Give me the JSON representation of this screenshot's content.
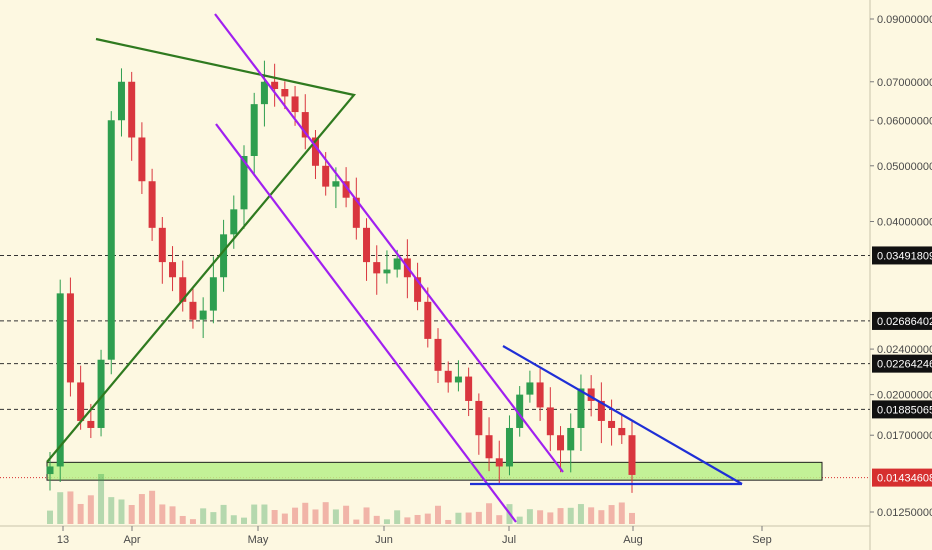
{
  "colors": {
    "background": "#fdf8e1",
    "up_candle": "#2e9e4f",
    "down_candle": "#d9363e",
    "purple_channel": "#a020f0",
    "green_triangle": "#2f7a1f",
    "blue_triangle": "#1f2fd6",
    "support_zone_fill": "#b9f08a",
    "current_price": "#d62f2f",
    "level_line": "#333333"
  },
  "chart_data": {
    "type": "candlestick",
    "title": "",
    "xlabel": "",
    "ylabel": "",
    "y_scale": "log",
    "ylim": [
      0.0118,
      0.095
    ],
    "grid": false,
    "x_ticks": [
      "13",
      "Apr",
      "May",
      "Jun",
      "Jul",
      "Aug",
      "Sep"
    ],
    "y_ticks": [
      "0.09000000",
      "0.07000000",
      "0.06000000",
      "0.05000000",
      "0.04000000",
      "0.03491809",
      "0.02686402",
      "0.02400000",
      "0.02264246",
      "0.02000000",
      "0.01885065",
      "0.01700000",
      "0.01434608",
      "0.01250000"
    ],
    "levels": [
      {
        "value": 0.03491809,
        "label": "0.03491809"
      },
      {
        "value": 0.02686402,
        "label": "0.02686402"
      },
      {
        "value": 0.02264246,
        "label": "0.02264246"
      },
      {
        "value": 0.01885065,
        "label": "0.01885065"
      }
    ],
    "current_price": {
      "value": 0.01434608,
      "label": "0.01434608"
    },
    "support_zone": [
      0.0142,
      0.01525
    ],
    "candles_close_path": [
      0.015,
      0.03,
      0.021,
      0.018,
      0.0175,
      0.023,
      0.06,
      0.07,
      0.056,
      0.047,
      0.039,
      0.034,
      0.032,
      0.029,
      0.027,
      0.028,
      0.032,
      0.038,
      0.042,
      0.052,
      0.064,
      0.07,
      0.068,
      0.066,
      0.062,
      0.056,
      0.05,
      0.046,
      0.047,
      0.044,
      0.039,
      0.034,
      0.0325,
      0.033,
      0.0345,
      0.032,
      0.029,
      0.025,
      0.022,
      0.021,
      0.0215,
      0.0195,
      0.017,
      0.0155,
      0.015,
      0.0175,
      0.02,
      0.021,
      0.019,
      0.017,
      0.016,
      0.0175,
      0.0205,
      0.0195,
      0.018,
      0.0175,
      0.017,
      0.0145
    ]
  }
}
